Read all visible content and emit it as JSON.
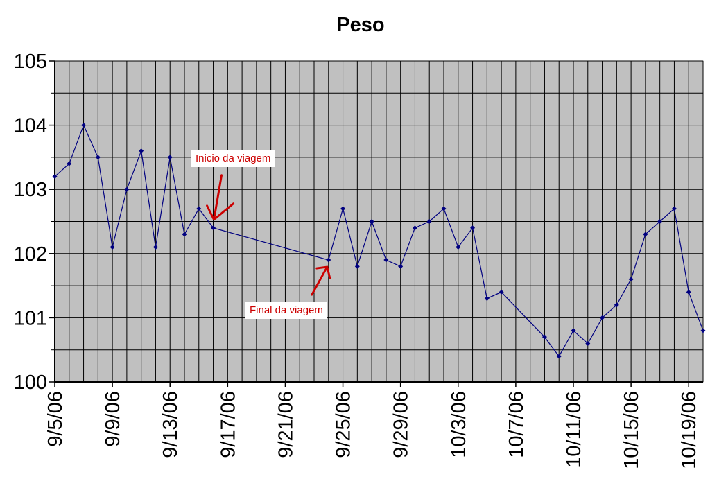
{
  "chart_data": {
    "type": "line",
    "title": "Peso",
    "xlabel": "",
    "ylabel": "",
    "x_axis_type": "date",
    "xlim": [
      "2006-09-05",
      "2006-10-20"
    ],
    "ylim": [
      100,
      105
    ],
    "y_ticks": [
      100,
      101,
      102,
      103,
      104,
      105
    ],
    "x_tick_labels": [
      "9/5/06",
      "9/9/06",
      "9/13/06",
      "9/17/06",
      "9/21/06",
      "9/25/06",
      "9/29/06",
      "10/3/06",
      "10/7/06",
      "10/11/06",
      "10/15/06",
      "10/19/06"
    ],
    "x_tick_dates": [
      "2006-09-05",
      "2006-09-09",
      "2006-09-13",
      "2006-09-17",
      "2006-09-21",
      "2006-09-25",
      "2006-09-29",
      "2006-10-03",
      "2006-10-07",
      "2006-10-11",
      "2006-10-15",
      "2006-10-19"
    ],
    "grid": true,
    "legend": "none",
    "colors": {
      "plot_background": "#c0c0c0",
      "grid": "#000000",
      "series": "#000080",
      "annotation": "#cc0000"
    },
    "series": [
      {
        "points": [
          {
            "x": "2006-09-05",
            "y": 103.2
          },
          {
            "x": "2006-09-06",
            "y": 103.4
          },
          {
            "x": "2006-09-07",
            "y": 104.0
          },
          {
            "x": "2006-09-08",
            "y": 103.5
          },
          {
            "x": "2006-09-09",
            "y": 102.1
          },
          {
            "x": "2006-09-10",
            "y": 103.0
          },
          {
            "x": "2006-09-11",
            "y": 103.6
          },
          {
            "x": "2006-09-12",
            "y": 102.1
          },
          {
            "x": "2006-09-13",
            "y": 103.5
          },
          {
            "x": "2006-09-14",
            "y": 102.3
          },
          {
            "x": "2006-09-15",
            "y": 102.7
          },
          {
            "x": "2006-09-16",
            "y": 102.4
          },
          {
            "x": "2006-09-24",
            "y": 101.9
          },
          {
            "x": "2006-09-25",
            "y": 102.7
          },
          {
            "x": "2006-09-26",
            "y": 101.8
          },
          {
            "x": "2006-09-27",
            "y": 102.5
          },
          {
            "x": "2006-09-28",
            "y": 101.9
          },
          {
            "x": "2006-09-29",
            "y": 101.8
          },
          {
            "x": "2006-09-30",
            "y": 102.4
          },
          {
            "x": "2006-10-01",
            "y": 102.5
          },
          {
            "x": "2006-10-02",
            "y": 102.7
          },
          {
            "x": "2006-10-03",
            "y": 102.1
          },
          {
            "x": "2006-10-04",
            "y": 102.4
          },
          {
            "x": "2006-10-05",
            "y": 101.3
          },
          {
            "x": "2006-10-06",
            "y": 101.4
          },
          {
            "x": "2006-10-09",
            "y": 100.7
          },
          {
            "x": "2006-10-10",
            "y": 100.4
          },
          {
            "x": "2006-10-11",
            "y": 100.8
          },
          {
            "x": "2006-10-12",
            "y": 100.6
          },
          {
            "x": "2006-10-13",
            "y": 101.0
          },
          {
            "x": "2006-10-14",
            "y": 101.2
          },
          {
            "x": "2006-10-15",
            "y": 101.6
          },
          {
            "x": "2006-10-16",
            "y": 102.3
          },
          {
            "x": "2006-10-17",
            "y": 102.5
          },
          {
            "x": "2006-10-18",
            "y": 102.7
          },
          {
            "x": "2006-10-19",
            "y": 101.4
          },
          {
            "x": "2006-10-20",
            "y": 100.8
          }
        ]
      }
    ],
    "annotations": [
      {
        "text": "Inicio da viagem",
        "x": "2006-09-16",
        "y": 102.4
      },
      {
        "text": "Final da viagem",
        "x": "2006-09-24",
        "y": 101.9
      }
    ]
  }
}
